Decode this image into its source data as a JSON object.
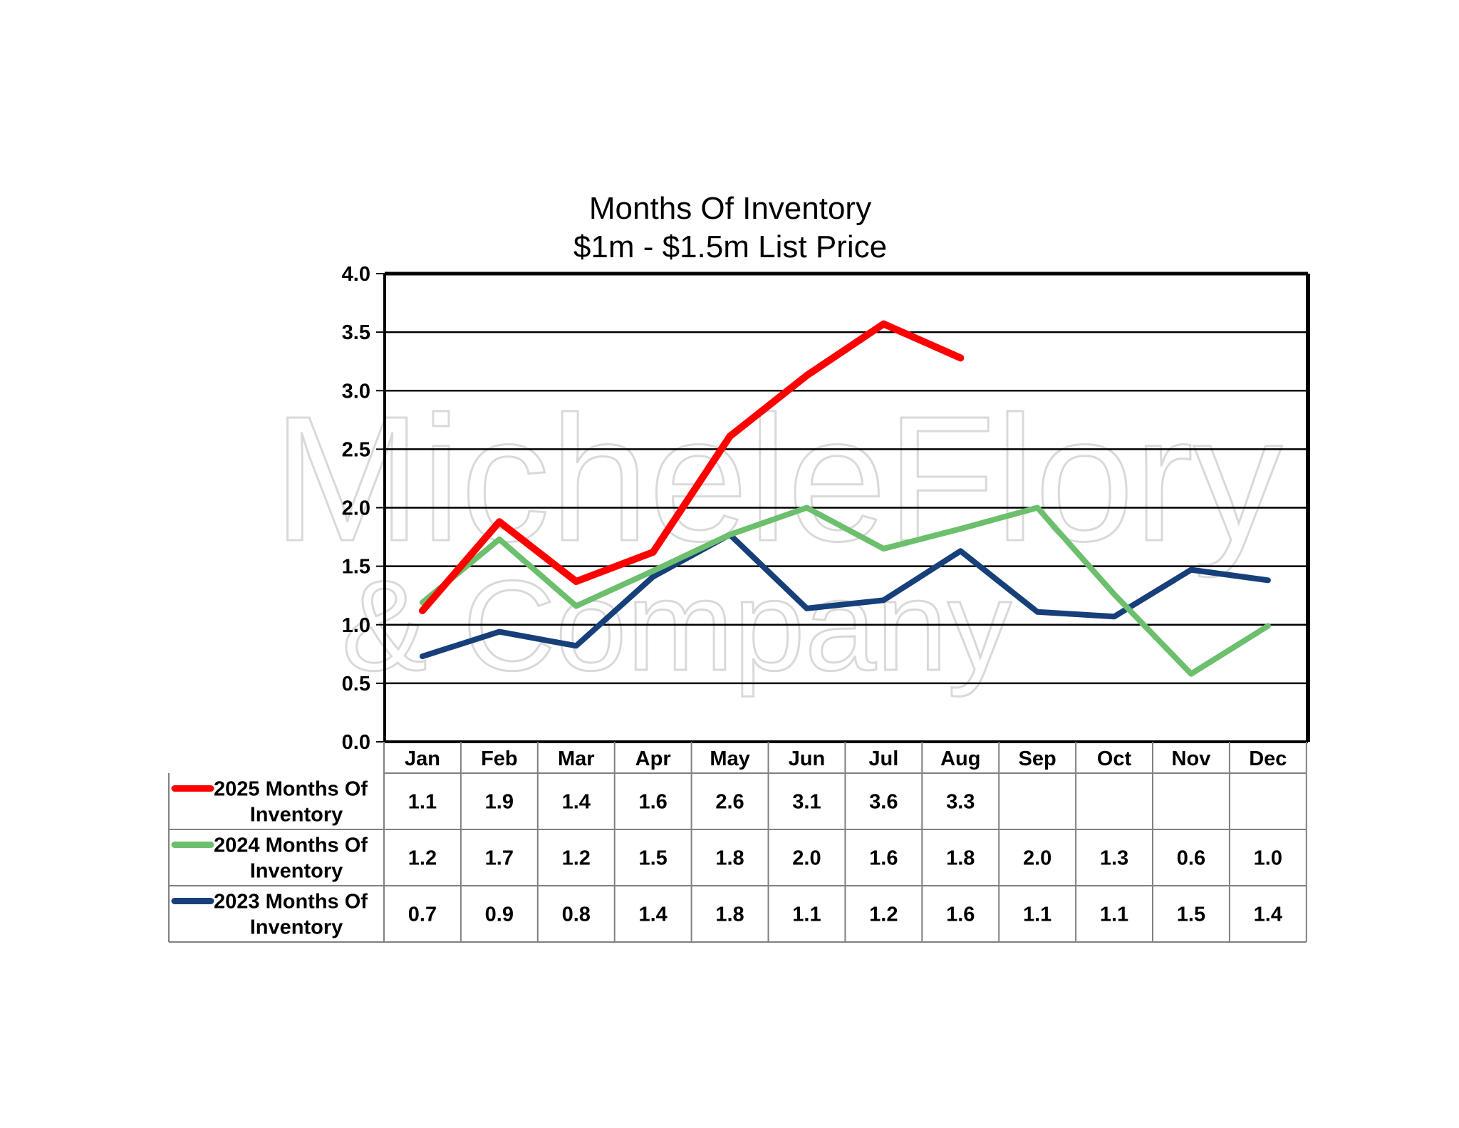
{
  "chart_data": {
    "type": "line",
    "title": [
      "Months Of Inventory",
      "$1m - $1.5m List Price"
    ],
    "xlabel": "",
    "ylabel": "",
    "ylim": [
      0,
      4
    ],
    "yticks": [
      "0.0",
      "0.5",
      "1.0",
      "1.5",
      "2.0",
      "2.5",
      "3.0",
      "3.5",
      "4.0"
    ],
    "grid": true,
    "legend": "data table below chart",
    "categories": [
      "Jan",
      "Feb",
      "Mar",
      "Apr",
      "May",
      "Jun",
      "Jul",
      "Aug",
      "Sep",
      "Oct",
      "Nov",
      "Dec"
    ],
    "series": [
      {
        "name": "2025 Months Of Inventory",
        "color": "#ff0000",
        "values": [
          1.12,
          1.88,
          1.37,
          1.62,
          2.61,
          3.13,
          3.57,
          3.28,
          null,
          null,
          null,
          null
        ],
        "labels": [
          "1.1",
          "1.9",
          "1.4",
          "1.6",
          "2.6",
          "3.1",
          "3.6",
          "3.3",
          "",
          "",
          "",
          ""
        ]
      },
      {
        "name": "2024 Months Of Inventory",
        "color": "#6cbf6c",
        "values": [
          1.19,
          1.73,
          1.16,
          1.46,
          1.77,
          2.0,
          1.65,
          1.82,
          2.0,
          1.26,
          0.58,
          0.99
        ],
        "labels": [
          "1.2",
          "1.7",
          "1.2",
          "1.5",
          "1.8",
          "2.0",
          "1.6",
          "1.8",
          "2.0",
          "1.3",
          "0.6",
          "1.0"
        ]
      },
      {
        "name": "2023 Months Of Inventory",
        "color": "#17407a",
        "values": [
          0.73,
          0.94,
          0.82,
          1.41,
          1.77,
          1.14,
          1.21,
          1.63,
          1.11,
          1.07,
          1.47,
          1.38
        ],
        "labels": [
          "0.7",
          "0.9",
          "0.8",
          "1.4",
          "1.8",
          "1.1",
          "1.2",
          "1.6",
          "1.1",
          "1.1",
          "1.5",
          "1.4"
        ]
      }
    ],
    "watermark": [
      "MicheleFlory",
      "& Company"
    ]
  }
}
